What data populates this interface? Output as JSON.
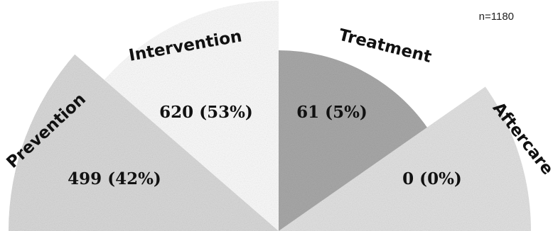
{
  "chart_data": {
    "type": "pie",
    "subtype": "semicircle-sectors",
    "sample_size_label": "n=1180",
    "sectors": [
      {
        "name": "Prevention",
        "value": 499,
        "label": "499 (42%)",
        "color": "#d9d9d9"
      },
      {
        "name": "Intervention",
        "value": 620,
        "label": "620 (53%)",
        "color": "#fbfbfb"
      },
      {
        "name": "Treatment",
        "value": 61,
        "label": "61 (5%)",
        "color": "#a9a9a9"
      },
      {
        "name": "Aftercare",
        "value": 0,
        "label": "0 (0%)",
        "color": "#e2e2e2"
      }
    ]
  }
}
